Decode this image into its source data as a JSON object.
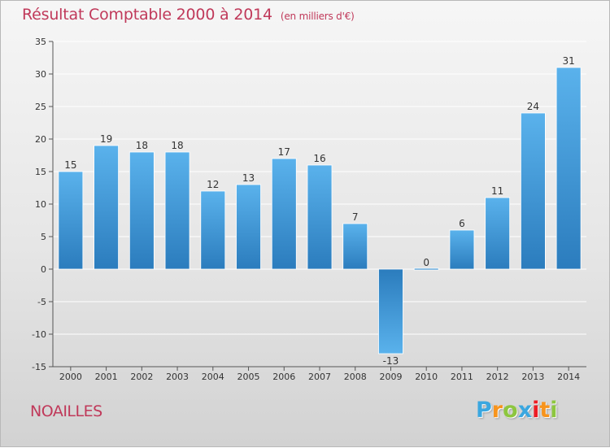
{
  "header": {
    "title": "Résultat Comptable 2000 à 2014",
    "subtitle": "(en milliers d'€)"
  },
  "footer": {
    "place": "NOAILLES",
    "logo_letters": [
      "P",
      "r",
      "o",
      "x",
      "i",
      "t",
      "i"
    ],
    "logo_colors": [
      "#3aa7e0",
      "#f7941d",
      "#8dc63f",
      "#3aa7e0",
      "#ed1c24",
      "#f7941d",
      "#8dc63f"
    ]
  },
  "colors": {
    "title": "#c0395a",
    "bar_light": "#5ab2ec",
    "bar_dark": "#2b7cbd",
    "grid": "#ffffff",
    "axis": "#555555"
  },
  "chart_data": {
    "type": "bar",
    "title": "Résultat Comptable 2000 à 2014",
    "ylabel": "en milliers d'€",
    "xlabel": "",
    "categories": [
      "2000",
      "2001",
      "2002",
      "2003",
      "2004",
      "2005",
      "2006",
      "2007",
      "2008",
      "2009",
      "2010",
      "2011",
      "2012",
      "2013",
      "2014"
    ],
    "values": [
      15,
      19,
      18,
      18,
      12,
      13,
      17,
      16,
      7,
      -13,
      0,
      6,
      11,
      24,
      31
    ],
    "value_labels": [
      "15",
      "19",
      "18",
      "18",
      "12",
      "13",
      "17",
      "16",
      "7",
      "-13",
      "0",
      "6",
      "11",
      "24",
      "31"
    ],
    "ylim": [
      -15,
      35
    ],
    "yticks": [
      -15,
      -10,
      -5,
      0,
      5,
      10,
      15,
      20,
      25,
      30,
      35
    ],
    "ytick_labels": [
      "-15",
      "-10",
      "-5",
      "0",
      "5",
      "10",
      "15",
      "20",
      "25",
      "30",
      "35"
    ],
    "grid": true
  }
}
